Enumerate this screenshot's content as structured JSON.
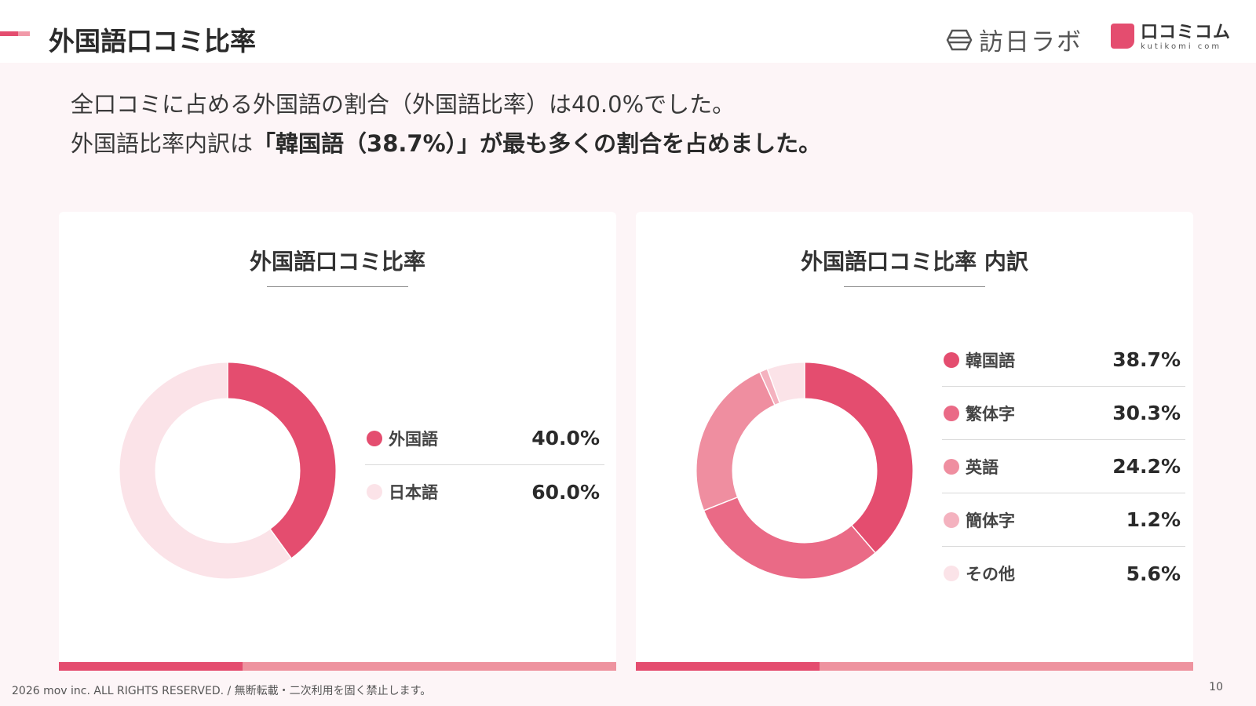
{
  "header": {
    "title": "外国語口コミ比率",
    "logos": {
      "houmon": "訪日ラボ",
      "kuchikomi_name": "口コミコム",
      "kuchikomi_url": "kutikomi com"
    }
  },
  "summary": {
    "line1": "全口コミに占める外国語の割合（外国語比率）は40.0%でした。",
    "line2_prefix": "外国語比率内訳は",
    "line2_bold": "「韓国語（38.7%）」が最も多くの割合を占めました。"
  },
  "colors": {
    "accent": "#e44d6f",
    "accent_light": "#ee939f"
  },
  "chart_data": [
    {
      "type": "pie",
      "title": "外国語口コミ比率",
      "categories": [
        "外国語",
        "日本語"
      ],
      "values": [
        40.0,
        60.0
      ],
      "labels": [
        "40.0%",
        "60.0%"
      ],
      "colors": [
        "#e44d6f",
        "#fbe3e8"
      ],
      "legend": "right"
    },
    {
      "type": "pie",
      "title": "外国語口コミ比率 内訳",
      "categories": [
        "韓国語",
        "繁体字",
        "英語",
        "簡体字",
        "その他"
      ],
      "values": [
        38.7,
        30.3,
        24.2,
        1.2,
        5.6
      ],
      "labels": [
        "38.7%",
        "30.3%",
        "24.2%",
        "1.2%",
        "5.6%"
      ],
      "colors": [
        "#e44d6f",
        "#ea6a86",
        "#ef8ea0",
        "#f4b2bf",
        "#fbe3e8"
      ],
      "legend": "right"
    }
  ],
  "footer": {
    "copyright": "2026 mov inc. ALL RIGHTS RESERVED. / 無断転載・二次利用を固く禁止します。",
    "page_number": "10"
  }
}
